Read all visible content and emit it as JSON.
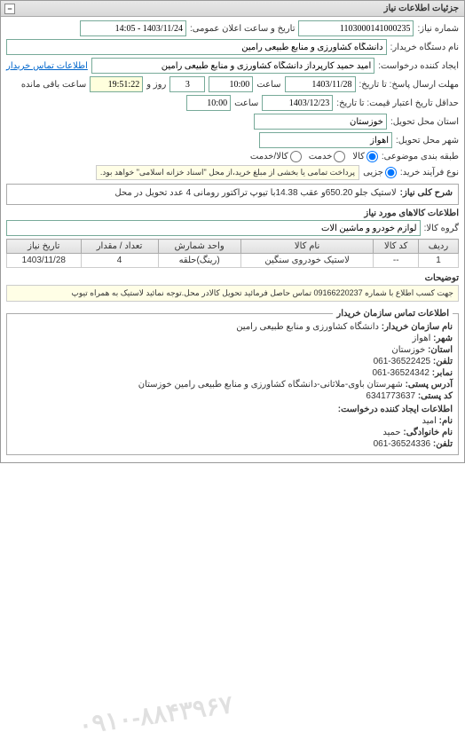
{
  "panel_title": "جزئیات اطلاعات نیاز",
  "collapse_glyph": "−",
  "fields": {
    "need_number_label": "شماره نیاز:",
    "need_number": "1103000141000235",
    "datetime_label": "تاریخ و ساعت اعلان عمومی:",
    "datetime": "1403/11/24 - 14:05",
    "buyer_org_label": "نام دستگاه خریدار:",
    "buyer_org": "دانشگاه کشاورزی و منابع طبیعی رامین",
    "creator_label": "ایجاد کننده درخواست:",
    "creator": "امید حمید کارپرداز دانشگاه کشاورزی و منابع طبیعی رامین",
    "contact_link": "اطلاعات تماس خریدار",
    "deadline_label": "مهلت ارسال پاسخ: تا تاریخ:",
    "deadline_date": "1403/11/28",
    "deadline_hour_label": "ساعت",
    "deadline_hour": "10:00",
    "remain_days": "3",
    "remain_days_label": "روز و",
    "remain_time": "19:51:22",
    "remain_time_label": "ساعت باقی مانده",
    "price_validity_label": "حداقل تاریخ اعتبار قیمت: تا تاریخ:",
    "price_validity_date": "1403/12/23",
    "price_validity_hour": "10:00",
    "province_label": "استان محل تحویل:",
    "province": "خوزستان",
    "city_label": "شهر محل تحویل:",
    "city": "اهواز",
    "cat_label": "طبقه بندی موضوعی:",
    "cat_kala": "کالا",
    "cat_khadamat": "خدمت",
    "cat_kala_khadamat": "کالا/خدمت",
    "buy_type_label": "نوع فرآیند خرید:",
    "buy_partial": "جزیی",
    "buy_note": "پرداخت تمامی یا بخشی از مبلغ خرید،از محل \"اسناد خزانه اسلامی\" خواهد بود."
  },
  "need_title_label": "شرح کلی نیاز:",
  "need_title": "لاستیک جلو 650.20و عقب 14.38با تیوپ تراکتور رومانی 4 عدد تحویل در محل",
  "goods_section": "اطلاعات کالاهای مورد نیاز",
  "goods_group_label": "گروه کالا:",
  "goods_group": "لوازم خودرو و ماشین آلات",
  "table": {
    "headers": [
      "ردیف",
      "کد کالا",
      "نام کالا",
      "واحد شمارش",
      "تعداد / مقدار",
      "تاریخ نیاز"
    ],
    "rows": [
      [
        "1",
        "--",
        "لاستیک خودروی سنگین",
        "(رینگ)حلقه",
        "4",
        "1403/11/28"
      ]
    ]
  },
  "extra_desc_label": "توضیحات",
  "extra_desc": "جهت کسب اطلاع با شماره 09166220237 تماس حاصل فرمائید تحویل کالادر محل.توجه نمائید لاستیک به همراه تیوپ",
  "contact_section": "اطلاعات تماس سازمان خریدار",
  "contact": {
    "org_label": "نام سازمان خریدار:",
    "org": "دانشگاه کشاورزی و منابع طبیعی رامین",
    "city_label": "شهر:",
    "city": "اهواز",
    "province_label": "استان:",
    "province": "خوزستان",
    "tel_label": "تلفن:",
    "tel": "36522425-061",
    "fax_label": "نمابر:",
    "fax": "36524342-061",
    "address_label": "آدرس پستی:",
    "address": "شهرستان باوی-ملاثانی-دانشگاه کشاورزی و منابع طبیعی رامین خوزستان",
    "postal_label": "کد پستی:",
    "postal": "6341773637",
    "req_creator_section": "اطلاعات ایجاد کننده درخواست:",
    "name_label": "نام:",
    "name": "امید",
    "family_label": "نام خانوادگی:",
    "family": "حمید",
    "phone_label": "تلفن:",
    "phone": "36524336-061"
  },
  "watermark": "۰۹۱۰-۸۸۴۳۹۶۷"
}
